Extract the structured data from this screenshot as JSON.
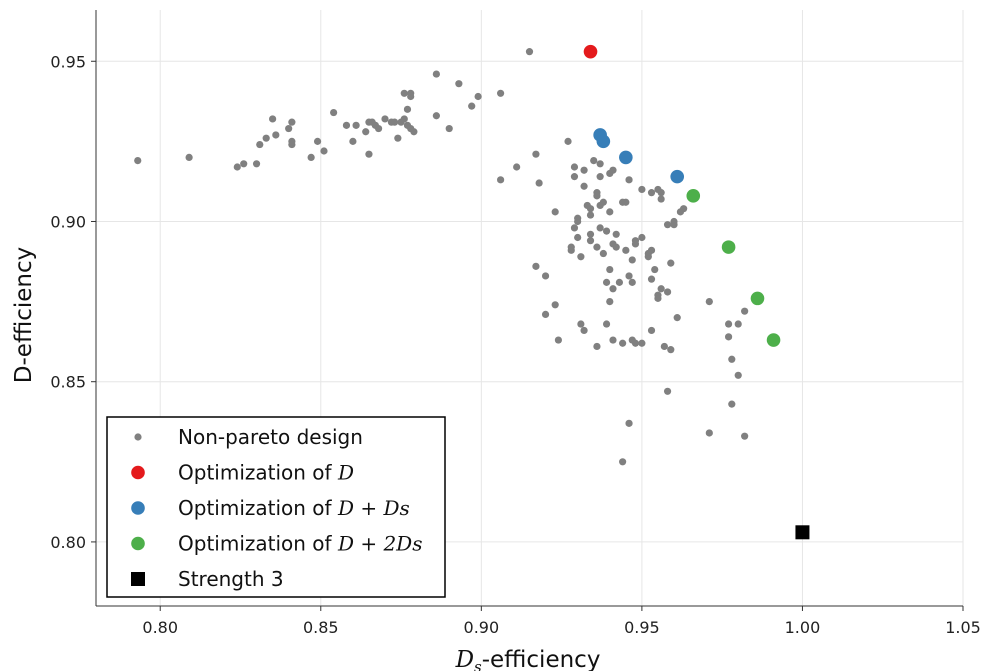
{
  "chart_data": {
    "type": "scatter",
    "xlabel_sym": "D",
    "xlabel_sub": "s",
    "xlabel_rest": "-efficiency",
    "ylabel": "D-efficiency",
    "xlim": [
      0.78,
      1.05
    ],
    "ylim": [
      0.78,
      0.966
    ],
    "xticks": [
      "0.80",
      "0.85",
      "0.90",
      "0.95",
      "1.00",
      "1.05"
    ],
    "yticks": [
      "0.80",
      "0.85",
      "0.90",
      "0.95"
    ],
    "grid": true,
    "legend_position": "lower-left",
    "legend": [
      {
        "prefix": "Non-pareto design",
        "math": "",
        "color": "#808080",
        "marker": "small-circle"
      },
      {
        "prefix": "Optimization of ",
        "math": "D",
        "color": "#e41a1c",
        "marker": "circle"
      },
      {
        "prefix": "Optimization of ",
        "math": "D + Ds",
        "color": "#377eb8",
        "marker": "circle"
      },
      {
        "prefix": "Optimization of ",
        "math": "D + 2Ds",
        "color": "#4daf4a",
        "marker": "circle"
      },
      {
        "prefix": "Strength 3",
        "math": "",
        "color": "#000000",
        "marker": "square"
      }
    ],
    "series": [
      {
        "name": "Non-pareto design",
        "color": "#808080",
        "points": [
          [
            0.793,
            0.919
          ],
          [
            0.809,
            0.92
          ],
          [
            0.824,
            0.917
          ],
          [
            0.826,
            0.918
          ],
          [
            0.83,
            0.918
          ],
          [
            0.831,
            0.924
          ],
          [
            0.833,
            0.926
          ],
          [
            0.835,
            0.932
          ],
          [
            0.836,
            0.927
          ],
          [
            0.84,
            0.929
          ],
          [
            0.841,
            0.931
          ],
          [
            0.841,
            0.925
          ],
          [
            0.841,
            0.924
          ],
          [
            0.847,
            0.92
          ],
          [
            0.849,
            0.925
          ],
          [
            0.851,
            0.922
          ],
          [
            0.854,
            0.934
          ],
          [
            0.858,
            0.93
          ],
          [
            0.86,
            0.925
          ],
          [
            0.861,
            0.93
          ],
          [
            0.864,
            0.928
          ],
          [
            0.865,
            0.931
          ],
          [
            0.865,
            0.921
          ],
          [
            0.866,
            0.931
          ],
          [
            0.867,
            0.93
          ],
          [
            0.868,
            0.929
          ],
          [
            0.87,
            0.932
          ],
          [
            0.872,
            0.931
          ],
          [
            0.873,
            0.931
          ],
          [
            0.874,
            0.926
          ],
          [
            0.875,
            0.931
          ],
          [
            0.876,
            0.94
          ],
          [
            0.876,
            0.932
          ],
          [
            0.877,
            0.93
          ],
          [
            0.877,
            0.935
          ],
          [
            0.878,
            0.939
          ],
          [
            0.878,
            0.94
          ],
          [
            0.878,
            0.929
          ],
          [
            0.879,
            0.928
          ],
          [
            0.886,
            0.946
          ],
          [
            0.886,
            0.933
          ],
          [
            0.89,
            0.929
          ],
          [
            0.893,
            0.943
          ],
          [
            0.897,
            0.936
          ],
          [
            0.899,
            0.939
          ],
          [
            0.906,
            0.94
          ],
          [
            0.906,
            0.913
          ],
          [
            0.911,
            0.917
          ],
          [
            0.915,
            0.953
          ],
          [
            0.917,
            0.921
          ],
          [
            0.918,
            0.912
          ],
          [
            0.917,
            0.886
          ],
          [
            0.92,
            0.871
          ],
          [
            0.92,
            0.883
          ],
          [
            0.923,
            0.903
          ],
          [
            0.923,
            0.874
          ],
          [
            0.924,
            0.863
          ],
          [
            0.927,
            0.925
          ],
          [
            0.928,
            0.891
          ],
          [
            0.928,
            0.892
          ],
          [
            0.929,
            0.914
          ],
          [
            0.929,
            0.917
          ],
          [
            0.929,
            0.898
          ],
          [
            0.93,
            0.9
          ],
          [
            0.93,
            0.901
          ],
          [
            0.93,
            0.895
          ],
          [
            0.931,
            0.868
          ],
          [
            0.931,
            0.889
          ],
          [
            0.932,
            0.916
          ],
          [
            0.932,
            0.911
          ],
          [
            0.932,
            0.866
          ],
          [
            0.933,
            0.905
          ],
          [
            0.934,
            0.904
          ],
          [
            0.934,
            0.902
          ],
          [
            0.934,
            0.896
          ],
          [
            0.934,
            0.894
          ],
          [
            0.935,
            0.919
          ],
          [
            0.936,
            0.909
          ],
          [
            0.936,
            0.908
          ],
          [
            0.936,
            0.892
          ],
          [
            0.936,
            0.861
          ],
          [
            0.937,
            0.918
          ],
          [
            0.937,
            0.914
          ],
          [
            0.937,
            0.905
          ],
          [
            0.937,
            0.898
          ],
          [
            0.938,
            0.906
          ],
          [
            0.938,
            0.89
          ],
          [
            0.939,
            0.897
          ],
          [
            0.939,
            0.868
          ],
          [
            0.939,
            0.881
          ],
          [
            0.94,
            0.875
          ],
          [
            0.94,
            0.885
          ],
          [
            0.94,
            0.915
          ],
          [
            0.94,
            0.903
          ],
          [
            0.941,
            0.916
          ],
          [
            0.941,
            0.893
          ],
          [
            0.941,
            0.879
          ],
          [
            0.941,
            0.863
          ],
          [
            0.942,
            0.892
          ],
          [
            0.942,
            0.896
          ],
          [
            0.943,
            0.881
          ],
          [
            0.944,
            0.906
          ],
          [
            0.944,
            0.862
          ],
          [
            0.944,
            0.825
          ],
          [
            0.945,
            0.906
          ],
          [
            0.945,
            0.891
          ],
          [
            0.946,
            0.913
          ],
          [
            0.946,
            0.883
          ],
          [
            0.946,
            0.837
          ],
          [
            0.947,
            0.888
          ],
          [
            0.947,
            0.881
          ],
          [
            0.947,
            0.863
          ],
          [
            0.948,
            0.894
          ],
          [
            0.948,
            0.893
          ],
          [
            0.948,
            0.862
          ],
          [
            0.95,
            0.91
          ],
          [
            0.95,
            0.895
          ],
          [
            0.95,
            0.862
          ],
          [
            0.952,
            0.89
          ],
          [
            0.952,
            0.889
          ],
          [
            0.953,
            0.891
          ],
          [
            0.953,
            0.882
          ],
          [
            0.953,
            0.866
          ],
          [
            0.953,
            0.909
          ],
          [
            0.954,
            0.885
          ],
          [
            0.955,
            0.877
          ],
          [
            0.955,
            0.876
          ],
          [
            0.955,
            0.91
          ],
          [
            0.956,
            0.909
          ],
          [
            0.956,
            0.907
          ],
          [
            0.956,
            0.879
          ],
          [
            0.957,
            0.861
          ],
          [
            0.958,
            0.899
          ],
          [
            0.958,
            0.878
          ],
          [
            0.958,
            0.847
          ],
          [
            0.959,
            0.887
          ],
          [
            0.959,
            0.86
          ],
          [
            0.96,
            0.9
          ],
          [
            0.96,
            0.899
          ],
          [
            0.961,
            0.87
          ],
          [
            0.962,
            0.903
          ],
          [
            0.963,
            0.904
          ],
          [
            0.971,
            0.875
          ],
          [
            0.971,
            0.834
          ],
          [
            0.977,
            0.864
          ],
          [
            0.977,
            0.868
          ],
          [
            0.978,
            0.857
          ],
          [
            0.978,
            0.843
          ],
          [
            0.98,
            0.852
          ],
          [
            0.98,
            0.868
          ],
          [
            0.982,
            0.872
          ],
          [
            0.982,
            0.833
          ]
        ]
      },
      {
        "name": "Optimization of D",
        "color": "#e41a1c",
        "points": [
          [
            0.934,
            0.953
          ]
        ]
      },
      {
        "name": "Optimization of D+Ds",
        "color": "#377eb8",
        "points": [
          [
            0.937,
            0.927
          ],
          [
            0.938,
            0.925
          ],
          [
            0.945,
            0.92
          ],
          [
            0.961,
            0.914
          ]
        ]
      },
      {
        "name": "Optimization of D+2Ds",
        "color": "#4daf4a",
        "points": [
          [
            0.966,
            0.908
          ],
          [
            0.977,
            0.892
          ],
          [
            0.986,
            0.876
          ],
          [
            0.991,
            0.863
          ]
        ]
      },
      {
        "name": "Strength 3",
        "color": "#000000",
        "marker": "square",
        "points": [
          [
            1.0,
            0.803
          ]
        ]
      }
    ]
  }
}
